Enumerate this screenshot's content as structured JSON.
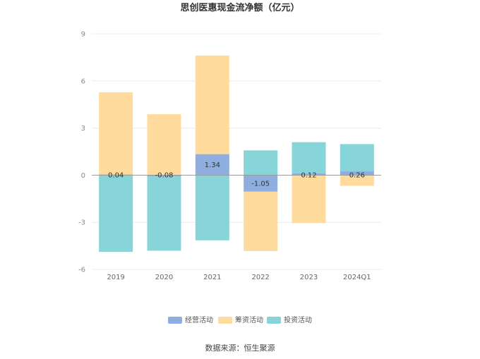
{
  "chart_data": {
    "type": "bar",
    "stacked": true,
    "title": "思创医惠现金流净额（亿元）",
    "categories": [
      "2019",
      "2020",
      "2021",
      "2022",
      "2023",
      "2024Q1"
    ],
    "series": [
      {
        "name": "经营活动",
        "color": "#8eaedf",
        "values": [
          0.04,
          -0.08,
          1.34,
          -1.05,
          0.12,
          0.26
        ]
      },
      {
        "name": "筹资活动",
        "color": "#ffdb9e",
        "values": [
          5.24,
          3.88,
          6.28,
          -3.78,
          -3.05,
          -0.68
        ]
      },
      {
        "name": "投资活动",
        "color": "#87d5d9",
        "values": [
          -4.88,
          -4.73,
          -4.15,
          1.58,
          1.98,
          1.72
        ]
      }
    ],
    "data_labels": [
      "0.04",
      "-0.08",
      "1.34",
      "-1.05",
      "0.12",
      "0.26"
    ],
    "yticks": [
      9,
      6,
      3,
      0,
      -3,
      -6
    ],
    "ylim": [
      -6,
      9
    ],
    "grid": true,
    "legend_position": "bottom",
    "source": "数据来源：恒生聚源"
  }
}
